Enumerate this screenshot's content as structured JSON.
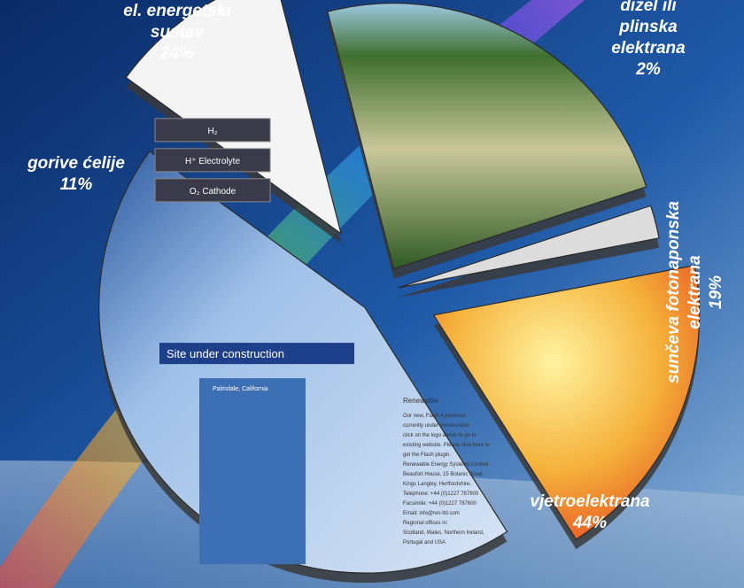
{
  "chart_data": {
    "type": "pie",
    "exploded": true,
    "slices": [
      {
        "name_lines": [
          "el. energetski",
          "sustav"
        ],
        "value": 24,
        "value_label": "24%",
        "fill": "#4f7d3a"
      },
      {
        "name_lines": [
          "dizel ili",
          "plinska",
          "elektrana"
        ],
        "value": 2,
        "value_label": "2%",
        "fill": "#dcdcdc"
      },
      {
        "name_lines": [
          "sunčeva fotonaponska",
          "elektrana"
        ],
        "value": 19,
        "value_label": "19%",
        "fill": "#f2b23a"
      },
      {
        "name_lines": [
          "vjetroelektrana"
        ],
        "value": 44,
        "value_label": "44%",
        "fill": "#bcd1ec"
      },
      {
        "name_lines": [
          "gorive ćelije"
        ],
        "value": 11,
        "value_label": "11%",
        "fill": "#f4f4f4"
      }
    ]
  },
  "slice_content": {
    "fuel_cell": {
      "row1": "H₂",
      "row2": "H⁺ Electrolyte",
      "row3": "O₂ Cathode"
    },
    "website": {
      "header": "Site under construction",
      "caption": "Palmdale, California",
      "heading": "Renewable",
      "lines": [
        "Our new, Flash 4 powered",
        "currently under construction",
        "click on the logo above to go to",
        "existing website. Please click here to",
        "get the Flash plugin.",
        "Renewable Energy Systems Limited",
        "Beaufort House, 15 Botanic Road,",
        "Kings Langley, Hertfordshire,",
        "Telephone: +44 (0)1227 787900",
        "Facsimile: +44 (0)1227 787600",
        "Email: info@res-ltd.com",
        "Regional offices in:",
        "Scotland, Wales, Northern Ireland,",
        "Portugal and USA"
      ]
    }
  }
}
